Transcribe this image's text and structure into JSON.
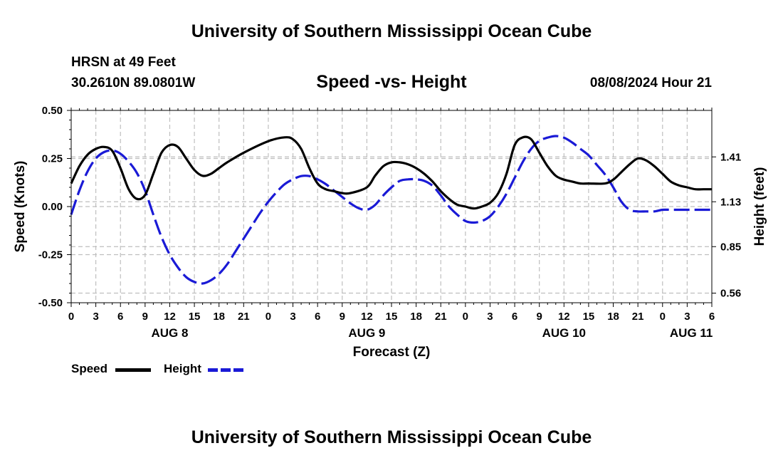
{
  "header": {
    "title": "University of Southern Mississippi Ocean Cube",
    "station": "HRSN at 49 Feet",
    "coords": "30.2610N  89.0801W",
    "subtitle": "Speed -vs- Height",
    "datetime": "08/08/2024 Hour 21"
  },
  "footer": {
    "title": "University of Southern Mississippi Ocean Cube"
  },
  "legend": {
    "speed_label": "Speed",
    "height_label": "Height"
  },
  "colors": {
    "speed": "#000000",
    "height": "#1a1ad6",
    "grid": "#bfbfbf"
  },
  "chart_data": {
    "type": "line",
    "xlabel": "Forecast (Z)",
    "ylabel_left": "Speed (Knots)",
    "ylabel_right": "Height (feet)",
    "x_range_hours": [
      0,
      78
    ],
    "x_ticks": [
      "0",
      "3",
      "6",
      "9",
      "12",
      "15",
      "18",
      "21",
      "0",
      "3",
      "6",
      "9",
      "12",
      "15",
      "18",
      "21",
      "0",
      "3",
      "6",
      "9",
      "12",
      "15",
      "18",
      "21",
      "0",
      "3",
      "6"
    ],
    "date_labels": [
      {
        "label": "AUG 8",
        "hour": 12
      },
      {
        "label": "AUG 9",
        "hour": 36
      },
      {
        "label": "AUG 10",
        "hour": 60
      },
      {
        "label": "AUG 11",
        "hour": 75.5
      }
    ],
    "left_axis": {
      "range": [
        -0.5,
        0.5
      ],
      "ticks": [
        "-0.50",
        "-0.25",
        "0.00",
        "0.25",
        "0.50"
      ],
      "tick_values": [
        -0.5,
        -0.25,
        0,
        0.25,
        0.5
      ]
    },
    "right_axis": {
      "range": [
        0.5,
        1.7
      ],
      "ticks": [
        "0.56",
        "0.85",
        "1.13",
        "1.41"
      ],
      "tick_values": [
        0.56,
        0.85,
        1.13,
        1.41
      ]
    },
    "series": [
      {
        "name": "Speed",
        "axis": "left",
        "style": "solid",
        "x": [
          0,
          1,
          2,
          3,
          4,
          5,
          6,
          7,
          8,
          9,
          10,
          11,
          12,
          13,
          14,
          15,
          16,
          17,
          18,
          19,
          21,
          24,
          26,
          27,
          28,
          29,
          30,
          31,
          32,
          33,
          34,
          36,
          37,
          38,
          39,
          40,
          41,
          42,
          43,
          44,
          45,
          46,
          47,
          48,
          49,
          50,
          51,
          52,
          53,
          54,
          55,
          56,
          57,
          58,
          59,
          60,
          61,
          62,
          63,
          65,
          66,
          67,
          68,
          69,
          70,
          71,
          72,
          73,
          74,
          75,
          76,
          77,
          78
        ],
        "y": [
          0.12,
          0.21,
          0.27,
          0.3,
          0.31,
          0.29,
          0.2,
          0.09,
          0.04,
          0.06,
          0.17,
          0.28,
          0.32,
          0.31,
          0.25,
          0.19,
          0.16,
          0.17,
          0.2,
          0.23,
          0.28,
          0.34,
          0.36,
          0.35,
          0.3,
          0.2,
          0.12,
          0.09,
          0.08,
          0.07,
          0.07,
          0.1,
          0.16,
          0.21,
          0.23,
          0.23,
          0.22,
          0.2,
          0.17,
          0.13,
          0.08,
          0.04,
          0.01,
          0.0,
          -0.01,
          0.0,
          0.02,
          0.07,
          0.17,
          0.32,
          0.36,
          0.35,
          0.28,
          0.21,
          0.16,
          0.14,
          0.13,
          0.12,
          0.12,
          0.12,
          0.14,
          0.18,
          0.22,
          0.25,
          0.24,
          0.21,
          0.17,
          0.13,
          0.11,
          0.1,
          0.09,
          0.09,
          0.09
        ]
      },
      {
        "name": "Height",
        "axis": "right",
        "style": "dashed",
        "x": [
          0,
          1,
          2,
          3,
          4,
          5,
          6,
          7,
          8,
          9,
          10,
          11,
          12,
          13,
          14,
          15,
          16,
          17,
          18,
          19,
          20,
          21,
          22,
          23,
          24,
          25,
          26,
          27,
          28,
          29,
          30,
          31,
          32,
          33,
          34,
          35,
          36,
          37,
          38,
          39,
          40,
          41,
          42,
          43,
          44,
          45,
          46,
          47,
          48,
          49,
          50,
          51,
          52,
          53,
          54,
          55,
          56,
          57,
          58,
          59,
          60,
          61,
          62,
          63,
          64,
          65,
          66,
          67,
          68,
          69,
          70,
          71,
          72,
          73,
          74,
          75,
          76,
          77,
          78
        ],
        "y": [
          1.05,
          1.2,
          1.32,
          1.4,
          1.44,
          1.45,
          1.43,
          1.38,
          1.31,
          1.2,
          1.05,
          0.91,
          0.8,
          0.72,
          0.66,
          0.63,
          0.62,
          0.64,
          0.68,
          0.74,
          0.82,
          0.9,
          0.98,
          1.06,
          1.13,
          1.19,
          1.24,
          1.27,
          1.29,
          1.29,
          1.27,
          1.24,
          1.2,
          1.16,
          1.12,
          1.09,
          1.08,
          1.11,
          1.17,
          1.22,
          1.26,
          1.27,
          1.27,
          1.26,
          1.23,
          1.17,
          1.1,
          1.05,
          1.01,
          1.0,
          1.01,
          1.04,
          1.1,
          1.18,
          1.28,
          1.38,
          1.46,
          1.51,
          1.53,
          1.54,
          1.53,
          1.5,
          1.46,
          1.42,
          1.36,
          1.3,
          1.22,
          1.13,
          1.08,
          1.07,
          1.07,
          1.07,
          1.08,
          1.08,
          1.08,
          1.08,
          1.08,
          1.08,
          1.08
        ]
      }
    ]
  }
}
